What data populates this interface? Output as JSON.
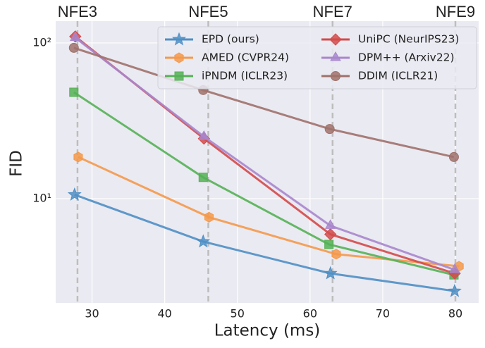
{
  "chart_data": {
    "type": "line",
    "xlabel": "Latency (ms)",
    "ylabel": "FID",
    "xlim": [
      25,
      83.2
    ],
    "xticks": [
      30,
      40,
      50,
      60,
      70,
      80
    ],
    "ylim": [
      2.14,
      138
    ],
    "yscale": "log",
    "yticks": [
      {
        "value": 10,
        "label": "10¹"
      },
      {
        "value": 100,
        "label": "10²"
      }
    ],
    "grid": true,
    "legend": "upper right",
    "annotations": [
      {
        "x": 28,
        "text": "NFE3"
      },
      {
        "x": 46,
        "text": "NFE5"
      },
      {
        "x": 63.1,
        "text": "NFE7"
      },
      {
        "x": 80,
        "text": "NFE9"
      }
    ],
    "series": [
      {
        "name": "EPD (ours)",
        "color": "#4f8fc4",
        "marker": "star",
        "x": [
          27.6,
          45.3,
          62.8,
          79.9
        ],
        "values": [
          10.6,
          5.3,
          3.31,
          2.55
        ]
      },
      {
        "name": "AMED (CVPR24)",
        "color": "#f5994a",
        "marker": "hexagon",
        "x": [
          28.1,
          46.1,
          63.6,
          80.5
        ],
        "values": [
          18.5,
          7.6,
          4.4,
          3.68
        ]
      },
      {
        "name": "iPNDM (ICLR23)",
        "color": "#55b155",
        "marker": "square",
        "x": [
          27.5,
          45.3,
          62.6,
          79.8
        ],
        "values": [
          48.2,
          13.7,
          5.08,
          3.24
        ]
      },
      {
        "name": "UniPC (NeurIPS23)",
        "color": "#d44a4a",
        "marker": "diamond",
        "x": [
          27.7,
          45.4,
          62.8,
          79.9
        ],
        "values": [
          110,
          24.3,
          5.9,
          3.31
        ]
      },
      {
        "name": "DPM++ (Arxiv22)",
        "color": "#a886cc",
        "marker": "triangle",
        "x": [
          27.7,
          45.4,
          62.8,
          79.9
        ],
        "values": [
          108,
          25,
          6.7,
          3.49
        ]
      },
      {
        "name": "DDIM (ICLR21)",
        "color": "#a0716b",
        "marker": "circle",
        "x": [
          27.5,
          45.3,
          62.7,
          79.8
        ],
        "values": [
          93,
          49.8,
          28,
          18.5
        ]
      }
    ]
  }
}
